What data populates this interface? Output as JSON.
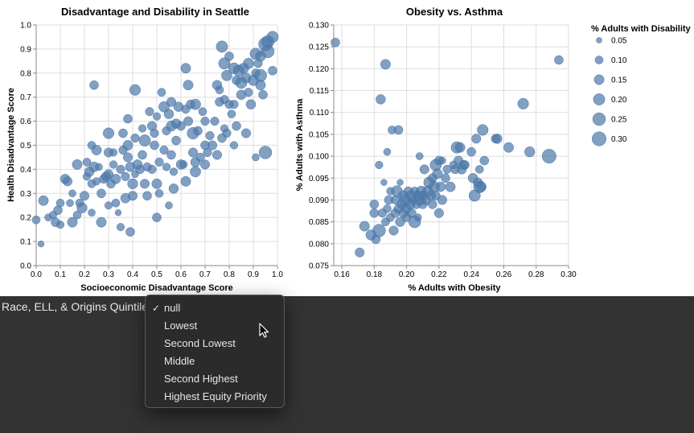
{
  "chart_data": [
    {
      "type": "scatter",
      "title": "Disadvantage and Disability in Seattle",
      "xlabel": "Socioeconomic Disadvantage Score",
      "ylabel": "Health Disadvantage Score",
      "xlim": [
        0,
        1
      ],
      "ylim": [
        0,
        1
      ],
      "xticks": [
        "0.0",
        "0.1",
        "0.2",
        "0.3",
        "0.4",
        "0.5",
        "0.6",
        "0.7",
        "0.8",
        "0.9",
        "1.0"
      ],
      "yticks": [
        "0.0",
        "0.1",
        "0.2",
        "0.3",
        "0.4",
        "0.5",
        "0.6",
        "0.7",
        "0.8",
        "0.9",
        "1.0"
      ],
      "grid": true,
      "size_field": "% Adults with Disability",
      "points": [
        [
          0.0,
          0.19,
          0.1
        ],
        [
          0.02,
          0.09,
          0.06
        ],
        [
          0.03,
          0.27,
          0.15
        ],
        [
          0.05,
          0.2,
          0.08
        ],
        [
          0.07,
          0.21,
          0.09
        ],
        [
          0.08,
          0.18,
          0.12
        ],
        [
          0.09,
          0.23,
          0.12
        ],
        [
          0.1,
          0.17,
          0.09
        ],
        [
          0.1,
          0.26,
          0.1
        ],
        [
          0.12,
          0.36,
          0.14
        ],
        [
          0.13,
          0.35,
          0.13
        ],
        [
          0.14,
          0.26,
          0.08
        ],
        [
          0.15,
          0.18,
          0.15
        ],
        [
          0.15,
          0.3,
          0.08
        ],
        [
          0.17,
          0.42,
          0.15
        ],
        [
          0.17,
          0.21,
          0.1
        ],
        [
          0.18,
          0.26,
          0.1
        ],
        [
          0.19,
          0.24,
          0.16
        ],
        [
          0.2,
          0.29,
          0.13
        ],
        [
          0.21,
          0.43,
          0.1
        ],
        [
          0.21,
          0.37,
          0.09
        ],
        [
          0.22,
          0.39,
          0.14
        ],
        [
          0.23,
          0.34,
          0.1
        ],
        [
          0.23,
          0.5,
          0.1
        ],
        [
          0.23,
          0.22,
          0.08
        ],
        [
          0.24,
          0.41,
          0.15
        ],
        [
          0.24,
          0.75,
          0.12
        ],
        [
          0.25,
          0.48,
          0.15
        ],
        [
          0.25,
          0.35,
          0.09
        ],
        [
          0.26,
          0.41,
          0.08
        ],
        [
          0.27,
          0.18,
          0.15
        ],
        [
          0.27,
          0.3,
          0.12
        ],
        [
          0.28,
          0.36,
          0.12
        ],
        [
          0.29,
          0.37,
          0.14
        ],
        [
          0.3,
          0.55,
          0.18
        ],
        [
          0.3,
          0.47,
          0.13
        ],
        [
          0.3,
          0.38,
          0.13
        ],
        [
          0.3,
          0.25,
          0.09
        ],
        [
          0.31,
          0.34,
          0.12
        ],
        [
          0.32,
          0.47,
          0.09
        ],
        [
          0.32,
          0.42,
          0.09
        ],
        [
          0.33,
          0.36,
          0.14
        ],
        [
          0.33,
          0.26,
          0.1
        ],
        [
          0.34,
          0.22,
          0.06
        ],
        [
          0.35,
          0.4,
          0.11
        ],
        [
          0.35,
          0.16,
          0.09
        ],
        [
          0.36,
          0.55,
          0.12
        ],
        [
          0.36,
          0.48,
          0.11
        ],
        [
          0.37,
          0.37,
          0.11
        ],
        [
          0.37,
          0.28,
          0.14
        ],
        [
          0.38,
          0.5,
          0.15
        ],
        [
          0.38,
          0.61,
          0.12
        ],
        [
          0.38,
          0.45,
          0.13
        ],
        [
          0.39,
          0.41,
          0.14
        ],
        [
          0.39,
          0.14,
          0.12
        ],
        [
          0.4,
          0.34,
          0.16
        ],
        [
          0.4,
          0.29,
          0.13
        ],
        [
          0.41,
          0.73,
          0.18
        ],
        [
          0.41,
          0.53,
          0.11
        ],
        [
          0.41,
          0.38,
          0.08
        ],
        [
          0.42,
          0.42,
          0.14
        ],
        [
          0.43,
          0.4,
          0.12
        ],
        [
          0.44,
          0.46,
          0.12
        ],
        [
          0.44,
          0.57,
          0.09
        ],
        [
          0.45,
          0.34,
          0.13
        ],
        [
          0.45,
          0.52,
          0.2
        ],
        [
          0.46,
          0.41,
          0.11
        ],
        [
          0.46,
          0.29,
          0.12
        ],
        [
          0.47,
          0.64,
          0.11
        ],
        [
          0.48,
          0.4,
          0.11
        ],
        [
          0.48,
          0.58,
          0.13
        ],
        [
          0.49,
          0.5,
          0.12
        ],
        [
          0.49,
          0.55,
          0.11
        ],
        [
          0.5,
          0.34,
          0.15
        ],
        [
          0.5,
          0.62,
          0.09
        ],
        [
          0.5,
          0.2,
          0.12
        ],
        [
          0.51,
          0.43,
          0.11
        ],
        [
          0.51,
          0.3,
          0.1
        ],
        [
          0.52,
          0.72,
          0.1
        ],
        [
          0.53,
          0.66,
          0.17
        ],
        [
          0.53,
          0.48,
          0.11
        ],
        [
          0.54,
          0.56,
          0.11
        ],
        [
          0.54,
          0.41,
          0.09
        ],
        [
          0.55,
          0.63,
          0.14
        ],
        [
          0.55,
          0.25,
          0.08
        ],
        [
          0.56,
          0.68,
          0.13
        ],
        [
          0.56,
          0.58,
          0.16
        ],
        [
          0.56,
          0.46,
          0.12
        ],
        [
          0.57,
          0.39,
          0.09
        ],
        [
          0.57,
          0.32,
          0.14
        ],
        [
          0.58,
          0.52,
          0.12
        ],
        [
          0.58,
          0.59,
          0.14
        ],
        [
          0.59,
          0.66,
          0.14
        ],
        [
          0.6,
          0.42,
          0.14
        ],
        [
          0.6,
          0.58,
          0.12
        ],
        [
          0.61,
          0.42,
          0.1
        ],
        [
          0.62,
          0.82,
          0.15
        ],
        [
          0.62,
          0.65,
          0.11
        ],
        [
          0.62,
          0.35,
          0.15
        ],
        [
          0.63,
          0.75,
          0.15
        ],
        [
          0.63,
          0.6,
          0.13
        ],
        [
          0.64,
          0.67,
          0.12
        ],
        [
          0.65,
          0.47,
          0.13
        ],
        [
          0.65,
          0.55,
          0.21
        ],
        [
          0.66,
          0.67,
          0.17
        ],
        [
          0.66,
          0.43,
          0.14
        ],
        [
          0.66,
          0.39,
          0.17
        ],
        [
          0.67,
          0.56,
          0.12
        ],
        [
          0.68,
          0.45,
          0.11
        ],
        [
          0.69,
          0.64,
          0.1
        ],
        [
          0.7,
          0.42,
          0.13
        ],
        [
          0.7,
          0.5,
          0.12
        ],
        [
          0.7,
          0.6,
          0.11
        ],
        [
          0.71,
          0.47,
          0.11
        ],
        [
          0.72,
          0.54,
          0.11
        ],
        [
          0.73,
          0.5,
          0.13
        ],
        [
          0.74,
          0.6,
          0.11
        ],
        [
          0.75,
          0.75,
          0.14
        ],
        [
          0.75,
          0.46,
          0.13
        ],
        [
          0.76,
          0.68,
          0.12
        ],
        [
          0.76,
          0.73,
          0.1
        ],
        [
          0.77,
          0.91,
          0.2
        ],
        [
          0.77,
          0.53,
          0.12
        ],
        [
          0.78,
          0.84,
          0.2
        ],
        [
          0.78,
          0.69,
          0.11
        ],
        [
          0.78,
          0.57,
          0.09
        ],
        [
          0.79,
          0.79,
          0.17
        ],
        [
          0.79,
          0.55,
          0.11
        ],
        [
          0.8,
          0.87,
          0.12
        ],
        [
          0.8,
          0.67,
          0.11
        ],
        [
          0.81,
          0.63,
          0.1
        ],
        [
          0.82,
          0.82,
          0.18
        ],
        [
          0.82,
          0.67,
          0.11
        ],
        [
          0.82,
          0.5,
          0.09
        ],
        [
          0.83,
          0.77,
          0.12
        ],
        [
          0.83,
          0.58,
          0.12
        ],
        [
          0.84,
          0.81,
          0.19
        ],
        [
          0.85,
          0.76,
          0.2
        ],
        [
          0.85,
          0.71,
          0.14
        ],
        [
          0.86,
          0.82,
          0.16
        ],
        [
          0.87,
          0.78,
          0.15
        ],
        [
          0.87,
          0.55,
          0.13
        ],
        [
          0.88,
          0.84,
          0.17
        ],
        [
          0.88,
          0.72,
          0.11
        ],
        [
          0.89,
          0.67,
          0.14
        ],
        [
          0.9,
          0.77,
          0.17
        ],
        [
          0.91,
          0.88,
          0.2
        ],
        [
          0.91,
          0.8,
          0.11
        ],
        [
          0.91,
          0.45,
          0.08
        ],
        [
          0.92,
          0.84,
          0.11
        ],
        [
          0.93,
          0.79,
          0.23
        ],
        [
          0.93,
          0.75,
          0.15
        ],
        [
          0.93,
          0.87,
          0.16
        ],
        [
          0.94,
          0.71,
          0.12
        ],
        [
          0.95,
          0.92,
          0.28
        ],
        [
          0.95,
          0.47,
          0.25
        ],
        [
          0.96,
          0.89,
          0.25
        ],
        [
          0.96,
          0.93,
          0.24
        ],
        [
          0.98,
          0.95,
          0.2
        ],
        [
          0.98,
          0.81,
          0.12
        ]
      ]
    },
    {
      "type": "scatter",
      "title": "Obesity vs. Asthma",
      "xlabel": "% Adults with Obesity",
      "ylabel": "% Adults with Asthma",
      "xlim": [
        0.155,
        0.3
      ],
      "ylim": [
        0.075,
        0.13
      ],
      "xticks": [
        "0.16",
        "0.18",
        "0.20",
        "0.22",
        "0.24",
        "0.26",
        "0.28",
        "0.30"
      ],
      "yticks": [
        "0.075",
        "0.080",
        "0.085",
        "0.090",
        "0.095",
        "0.100",
        "0.105",
        "0.110",
        "0.115",
        "0.120",
        "0.125",
        "0.130"
      ],
      "grid": true,
      "size_field": "% Adults with Disability",
      "points": [
        [
          0.156,
          0.126,
          0.12
        ],
        [
          0.171,
          0.078,
          0.13
        ],
        [
          0.174,
          0.084,
          0.15
        ],
        [
          0.178,
          0.082,
          0.16
        ],
        [
          0.18,
          0.087,
          0.12
        ],
        [
          0.18,
          0.089,
          0.12
        ],
        [
          0.181,
          0.081,
          0.12
        ],
        [
          0.183,
          0.083,
          0.25
        ],
        [
          0.183,
          0.098,
          0.09
        ],
        [
          0.184,
          0.113,
          0.14
        ],
        [
          0.185,
          0.087,
          0.11
        ],
        [
          0.186,
          0.094,
          0.06
        ],
        [
          0.187,
          0.121,
          0.15
        ],
        [
          0.187,
          0.085,
          0.1
        ],
        [
          0.188,
          0.101,
          0.08
        ],
        [
          0.188,
          0.088,
          0.1
        ],
        [
          0.189,
          0.09,
          0.12
        ],
        [
          0.19,
          0.086,
          0.1
        ],
        [
          0.19,
          0.092,
          0.09
        ],
        [
          0.191,
          0.106,
          0.1
        ],
        [
          0.192,
          0.083,
          0.13
        ],
        [
          0.193,
          0.087,
          0.12
        ],
        [
          0.193,
          0.09,
          0.11
        ],
        [
          0.194,
          0.092,
          0.19
        ],
        [
          0.195,
          0.106,
          0.12
        ],
        [
          0.195,
          0.088,
          0.13
        ],
        [
          0.196,
          0.085,
          0.14
        ],
        [
          0.196,
          0.094,
          0.06
        ],
        [
          0.197,
          0.089,
          0.14
        ],
        [
          0.198,
          0.087,
          0.12
        ],
        [
          0.198,
          0.091,
          0.15
        ],
        [
          0.199,
          0.09,
          0.2
        ],
        [
          0.2,
          0.086,
          0.11
        ],
        [
          0.2,
          0.088,
          0.14
        ],
        [
          0.201,
          0.092,
          0.12
        ],
        [
          0.202,
          0.089,
          0.16
        ],
        [
          0.203,
          0.091,
          0.17
        ],
        [
          0.203,
          0.087,
          0.13
        ],
        [
          0.204,
          0.09,
          0.14
        ],
        [
          0.205,
          0.085,
          0.22
        ],
        [
          0.205,
          0.092,
          0.11
        ],
        [
          0.206,
          0.089,
          0.12
        ],
        [
          0.207,
          0.091,
          0.15
        ],
        [
          0.207,
          0.086,
          0.08
        ],
        [
          0.208,
          0.1,
          0.08
        ],
        [
          0.208,
          0.09,
          0.18
        ],
        [
          0.209,
          0.092,
          0.16
        ],
        [
          0.21,
          0.089,
          0.12
        ],
        [
          0.21,
          0.091,
          0.13
        ],
        [
          0.211,
          0.097,
          0.13
        ],
        [
          0.212,
          0.09,
          0.14
        ],
        [
          0.213,
          0.092,
          0.17
        ],
        [
          0.214,
          0.094,
          0.19
        ],
        [
          0.215,
          0.091,
          0.14
        ],
        [
          0.216,
          0.095,
          0.12
        ],
        [
          0.216,
          0.089,
          0.12
        ],
        [
          0.217,
          0.093,
          0.18
        ],
        [
          0.218,
          0.098,
          0.2
        ],
        [
          0.218,
          0.091,
          0.12
        ],
        [
          0.219,
          0.096,
          0.15
        ],
        [
          0.22,
          0.099,
          0.12
        ],
        [
          0.22,
          0.087,
          0.13
        ],
        [
          0.221,
          0.093,
          0.14
        ],
        [
          0.222,
          0.09,
          0.13
        ],
        [
          0.222,
          0.099,
          0.08
        ],
        [
          0.224,
          0.095,
          0.12
        ],
        [
          0.225,
          0.097,
          0.11
        ],
        [
          0.227,
          0.093,
          0.15
        ],
        [
          0.229,
          0.098,
          0.1
        ],
        [
          0.23,
          0.097,
          0.12
        ],
        [
          0.231,
          0.102,
          0.2
        ],
        [
          0.232,
          0.099,
          0.13
        ],
        [
          0.233,
          0.102,
          0.15
        ],
        [
          0.234,
          0.097,
          0.14
        ],
        [
          0.235,
          0.098,
          0.13
        ],
        [
          0.236,
          0.098,
          0.12
        ],
        [
          0.24,
          0.101,
          0.12
        ],
        [
          0.241,
          0.095,
          0.14
        ],
        [
          0.242,
          0.091,
          0.2
        ],
        [
          0.243,
          0.104,
          0.13
        ],
        [
          0.244,
          0.094,
          0.13
        ],
        [
          0.245,
          0.097,
          0.1
        ],
        [
          0.245,
          0.093,
          0.22
        ],
        [
          0.246,
          0.093,
          0.16
        ],
        [
          0.247,
          0.106,
          0.18
        ],
        [
          0.248,
          0.099,
          0.12
        ],
        [
          0.255,
          0.104,
          0.12
        ],
        [
          0.256,
          0.104,
          0.14
        ],
        [
          0.263,
          0.102,
          0.15
        ],
        [
          0.272,
          0.112,
          0.18
        ],
        [
          0.276,
          0.101,
          0.16
        ],
        [
          0.288,
          0.1,
          0.3
        ],
        [
          0.294,
          0.122,
          0.12
        ]
      ]
    }
  ],
  "legend": {
    "title": "% Adults with Disability",
    "items": [
      "0.05",
      "0.10",
      "0.15",
      "0.20",
      "0.25",
      "0.30"
    ]
  },
  "control": {
    "label": "Race, ELL, & Origins Quintile",
    "options": [
      "null",
      "Lowest",
      "Second Lowest",
      "Middle",
      "Second Highest",
      "Highest Equity Priority"
    ],
    "selected_index": 0
  }
}
